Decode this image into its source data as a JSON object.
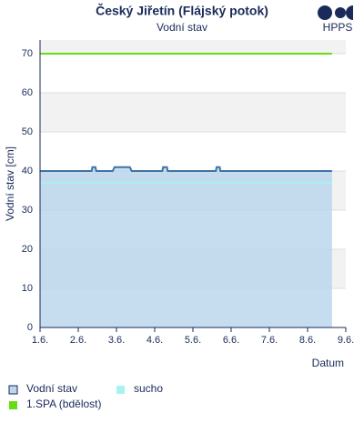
{
  "brand": "HPPS",
  "chart_data": {
    "type": "line",
    "title": "Český Jiřetín (Flájský potok)",
    "subtitle": "Vodní stav",
    "y_label": "Vodní stav [cm]",
    "x_label": "Datum",
    "xlim": [
      1,
      9
    ],
    "ylim": [
      0,
      73.5
    ],
    "xticks": [
      {
        "value": 1,
        "label": "1.6."
      },
      {
        "value": 2,
        "label": "2.6."
      },
      {
        "value": 3,
        "label": "3.6."
      },
      {
        "value": 4,
        "label": "4.6."
      },
      {
        "value": 5,
        "label": "5.6."
      },
      {
        "value": 6,
        "label": "6.6."
      },
      {
        "value": 7,
        "label": "7.6."
      },
      {
        "value": 8,
        "label": "8.6."
      },
      {
        "value": 9,
        "label": "9.6."
      }
    ],
    "yticks": [
      0,
      10,
      20,
      30,
      40,
      50,
      60,
      70
    ],
    "grid": true,
    "series": [
      {
        "name": "Vodní stav",
        "color": "#3f73a6",
        "fill": "#bcd6ec",
        "x": [
          1,
          2.35,
          2.37,
          2.45,
          2.47,
          2.9,
          2.95,
          3.35,
          3.4,
          4.2,
          4.22,
          4.32,
          4.34,
          5.6,
          5.62,
          5.7,
          5.72,
          8.64
        ],
        "values": [
          40,
          40,
          41,
          41,
          40,
          40,
          41,
          41,
          40,
          40,
          41,
          41,
          40,
          40,
          41,
          41,
          40,
          40
        ]
      },
      {
        "name": "sucho",
        "color": "#a8f2f4",
        "x": [
          1,
          8.64
        ],
        "values": [
          37,
          37
        ]
      },
      {
        "name": "1.SPA (bdělost)",
        "color": "#66dd11",
        "x": [
          1,
          8.64
        ],
        "values": [
          70,
          70
        ]
      }
    ]
  }
}
